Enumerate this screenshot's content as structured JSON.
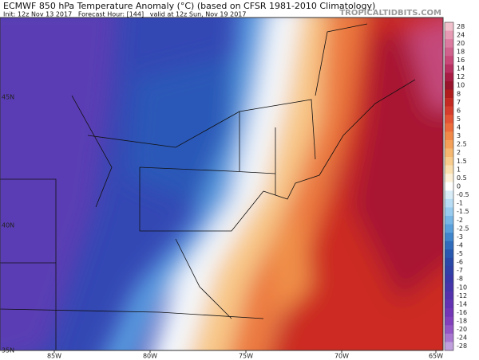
{
  "header": {
    "title": "ECMWF 850 hPa Temperature Anomaly (°C) (based on CFSR 1981-2010 Climatology)",
    "init_line": "Init: 12z Nov 13 2017   Forecast Hour: [144]   valid at 12z Sun, Nov 19 2017",
    "watermark": "TROPICALTIDBITS.COM"
  },
  "map": {
    "lat_labels": [
      "45N",
      "40N",
      "35N"
    ],
    "lon_labels": [
      "85W",
      "80W",
      "75W",
      "70W",
      "65W"
    ]
  },
  "colorbar": {
    "labels": [
      28,
      24,
      20,
      18,
      16,
      14,
      12,
      10,
      8,
      7,
      6,
      5,
      4,
      3,
      2.5,
      2,
      1.5,
      1,
      0.5,
      0,
      -0.5,
      -1,
      -1.5,
      -2,
      -2.5,
      -3,
      -4,
      -5,
      -6,
      -7,
      -8,
      -10,
      -12,
      -14,
      -16,
      -18,
      -20,
      -24,
      -28
    ],
    "colors": [
      "#f0c0cc",
      "#e79ab4",
      "#dc7aa0",
      "#d0608c",
      "#c84878",
      "#b83060",
      "#a81c44",
      "#98142c",
      "#b01c1c",
      "#c42a22",
      "#d63c2c",
      "#e45434",
      "#ec6c3c",
      "#f08848",
      "#f4a058",
      "#f6b870",
      "#f8cc8c",
      "#fae0b0",
      "#fcf0d8",
      "#ffffff",
      "#d8ecf8",
      "#b8dcf4",
      "#98cbee",
      "#78b6e6",
      "#5aa0dc",
      "#4086cc",
      "#306cbc",
      "#2858b0",
      "#2a48a8",
      "#3040a6",
      "#3a38a8",
      "#4634aa",
      "#5432ae",
      "#6232b2",
      "#7236b6",
      "#8240bc",
      "#9456c4",
      "#a876ce",
      "#c0a0dc"
    ]
  }
}
